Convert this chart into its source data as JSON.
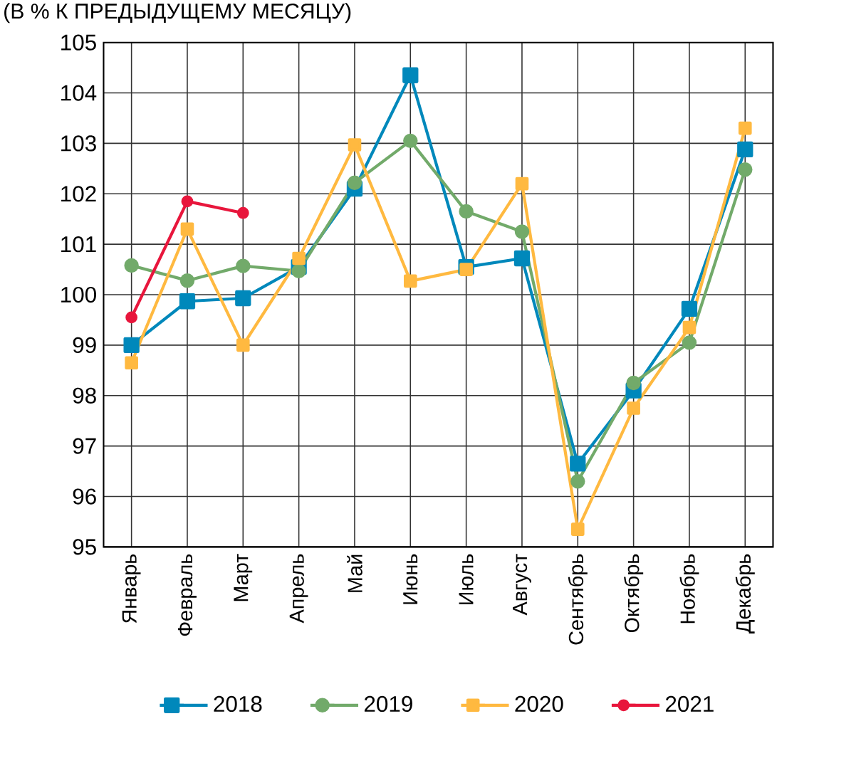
{
  "chart_data": {
    "type": "line",
    "title": "(В % К ПРЕДЫДУЩЕМУ МЕСЯЦУ)",
    "categories": [
      "Январь",
      "Февраль",
      "Март",
      "Апрель",
      "Май",
      "Июнь",
      "Июль",
      "Август",
      "Сентябрь",
      "Октябрь",
      "Ноябрь",
      "Декабрь"
    ],
    "series": [
      {
        "name": "2018",
        "color": "#0088bb",
        "marker": "square",
        "values": [
          99.0,
          99.87,
          99.93,
          100.55,
          102.1,
          104.35,
          100.55,
          100.72,
          96.65,
          98.1,
          99.72,
          102.88
        ]
      },
      {
        "name": "2019",
        "color": "#72aa6a",
        "marker": "circle",
        "values": [
          100.58,
          100.28,
          100.57,
          100.47,
          102.22,
          103.05,
          101.65,
          101.25,
          96.3,
          98.25,
          99.05,
          102.48
        ]
      },
      {
        "name": "2020",
        "color": "#ffb940",
        "marker": "square",
        "values": [
          98.65,
          101.3,
          99.0,
          100.72,
          102.97,
          100.27,
          100.5,
          102.2,
          95.35,
          97.75,
          99.35,
          103.3
        ]
      },
      {
        "name": "2021",
        "color": "#e8163c",
        "marker": "circle",
        "values": [
          99.55,
          101.85,
          101.62,
          null,
          null,
          null,
          null,
          null,
          null,
          null,
          null,
          null
        ]
      }
    ],
    "ylim": [
      95,
      105
    ],
    "yticks": [
      95,
      96,
      97,
      98,
      99,
      100,
      101,
      102,
      103,
      104,
      105
    ],
    "grid": true,
    "legend": "bottom"
  }
}
